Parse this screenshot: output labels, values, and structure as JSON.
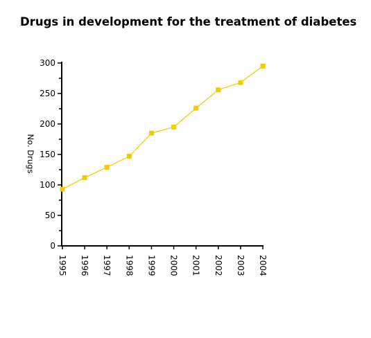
{
  "chart_data": {
    "type": "line",
    "title": "Drugs in development for the treatment of diabetes",
    "xlabel": "",
    "ylabel": "No. Drugs",
    "categories": [
      "1995",
      "1996",
      "1997",
      "1998",
      "1999",
      "2000",
      "2001",
      "2002",
      "2003",
      "2004"
    ],
    "values": [
      93,
      112,
      129,
      147,
      185,
      195,
      226,
      256,
      268,
      295
    ],
    "ylim": [
      0,
      300
    ],
    "yticks": [
      0,
      50,
      100,
      150,
      200,
      250,
      300
    ],
    "grid": false,
    "legend": "none",
    "colors": {
      "series": "#f2cc00",
      "axis": "#000000"
    }
  }
}
